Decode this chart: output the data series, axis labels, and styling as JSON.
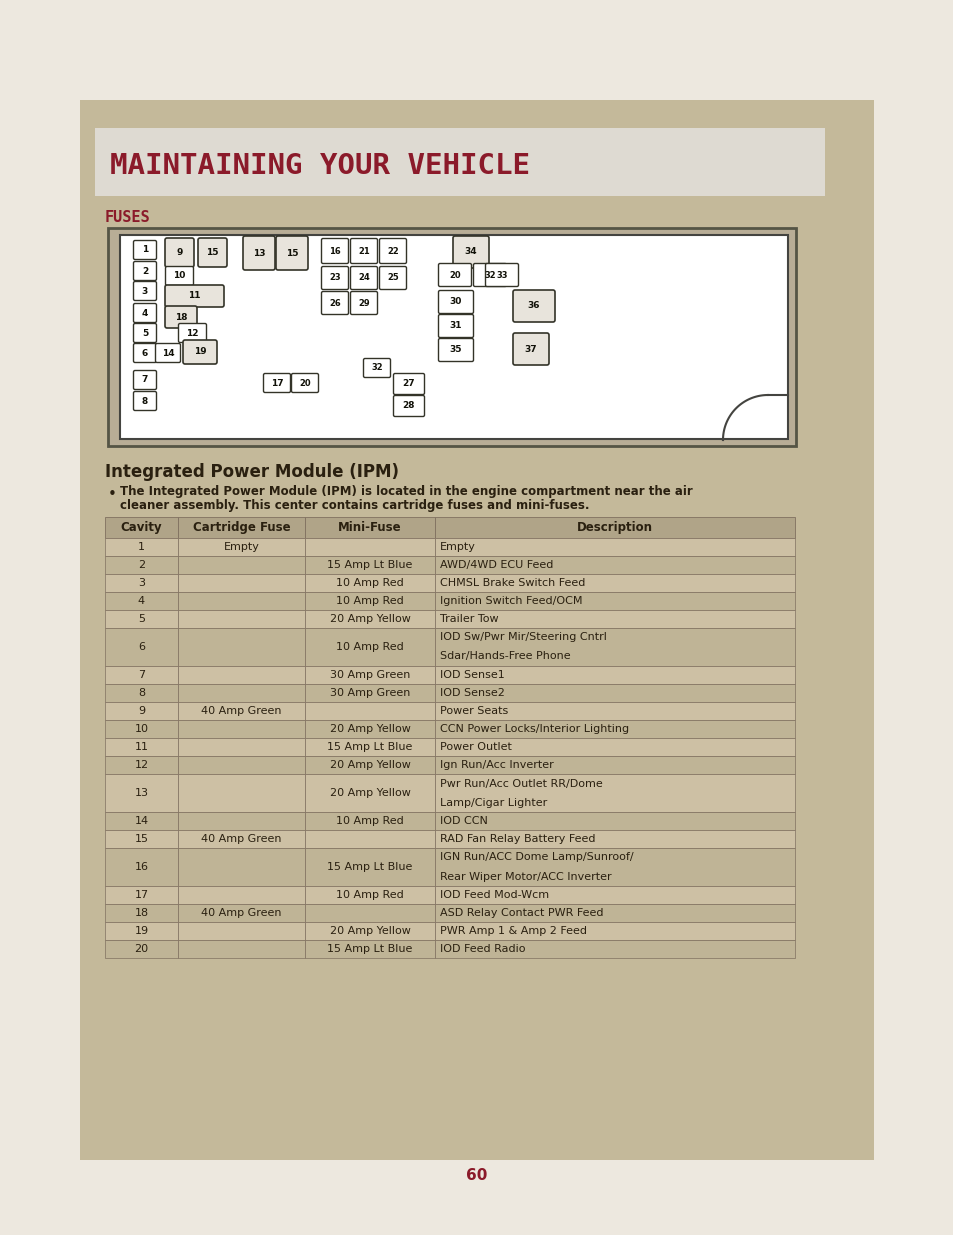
{
  "page_bg": "#ede8df",
  "content_bg": "#c4b99a",
  "title_text": "MAINTAINING YOUR VEHICLE",
  "title_bg": "#dedad2",
  "title_color": "#8b1a2a",
  "fuses_label": "FUSES",
  "fuses_color": "#8b1a2a",
  "ipm_title": "Integrated Power Module (IPM)",
  "ipm_desc_line1": "The Integrated Power Module (IPM) is located in the engine compartment near the air",
  "ipm_desc_line2": "cleaner assembly. This center contains cartridge fuses and mini-fuses.",
  "table_headers": [
    "Cavity",
    "Cartridge Fuse",
    "Mini-Fuse",
    "Description"
  ],
  "table_rows": [
    [
      "1",
      "Empty",
      "",
      "Empty",
      1
    ],
    [
      "2",
      "",
      "15 Amp Lt Blue",
      "AWD/4WD ECU Feed",
      1
    ],
    [
      "3",
      "",
      "10 Amp Red",
      "CHMSL Brake Switch Feed",
      1
    ],
    [
      "4",
      "",
      "10 Amp Red",
      "Ignition Switch Feed/OCM",
      1
    ],
    [
      "5",
      "",
      "20 Amp Yellow",
      "Trailer Tow",
      1
    ],
    [
      "6",
      "",
      "10 Amp Red",
      "IOD Sw/Pwr Mir/Steering Cntrl\nSdar/Hands-Free Phone",
      2
    ],
    [
      "7",
      "",
      "30 Amp Green",
      "IOD Sense1",
      1
    ],
    [
      "8",
      "",
      "30 Amp Green",
      "IOD Sense2",
      1
    ],
    [
      "9",
      "40 Amp Green",
      "",
      "Power Seats",
      1
    ],
    [
      "10",
      "",
      "20 Amp Yellow",
      "CCN Power Locks/Interior Lighting",
      1
    ],
    [
      "11",
      "",
      "15 Amp Lt Blue",
      "Power Outlet",
      1
    ],
    [
      "12",
      "",
      "20 Amp Yellow",
      "Ign Run/Acc Inverter",
      1
    ],
    [
      "13",
      "",
      "20 Amp Yellow",
      "Pwr Run/Acc Outlet RR/Dome\nLamp/Cigar Lighter",
      2
    ],
    [
      "14",
      "",
      "10 Amp Red",
      "IOD CCN",
      1
    ],
    [
      "15",
      "40 Amp Green",
      "",
      "RAD Fan Relay Battery Feed",
      1
    ],
    [
      "16",
      "",
      "15 Amp Lt Blue",
      "IGN Run/ACC Dome Lamp/Sunroof/\nRear Wiper Motor/ACC Inverter",
      2
    ],
    [
      "17",
      "",
      "10 Amp Red",
      "IOD Feed Mod-Wcm",
      1
    ],
    [
      "18",
      "40 Amp Green",
      "",
      "ASD Relay Contact PWR Feed",
      1
    ],
    [
      "19",
      "",
      "20 Amp Yellow",
      "PWR Amp 1 & Amp 2 Feed",
      1
    ],
    [
      "20",
      "",
      "15 Amp Lt Blue",
      "IOD Feed Radio",
      1
    ]
  ],
  "page_number": "60",
  "table_header_bg": "#b0a488",
  "table_even_bg": "#cdc0a4",
  "table_odd_bg": "#bfb496",
  "text_color": "#2a2010",
  "border_color": "#807060"
}
